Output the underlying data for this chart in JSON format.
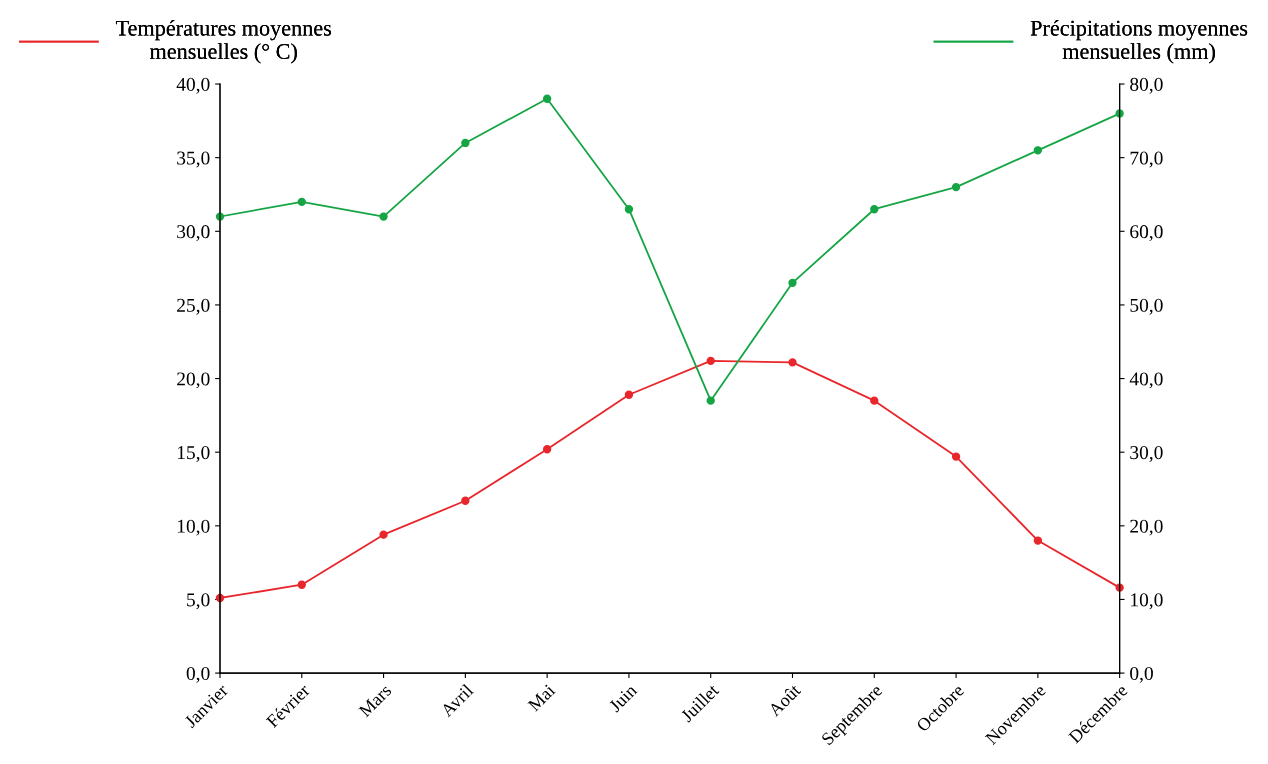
{
  "chart_data": {
    "type": "line",
    "categories": [
      "Janvier",
      "Février",
      "Mars",
      "Avril",
      "Mai",
      "Juin",
      "Juillet",
      "Août",
      "Septembre",
      "Octobre",
      "Novembre",
      "Décembre"
    ],
    "series": [
      {
        "name": "Températures moyennes\nmensuelles (° C)",
        "color": "#e8262b",
        "values": [
          5.1,
          6.0,
          9.4,
          11.7,
          15.2,
          18.9,
          21.2,
          21.1,
          18.5,
          14.7,
          9.0,
          5.8
        ]
      },
      {
        "name": "Précipitations moyennes\nmensuelles (mm)",
        "color": "#15a544",
        "axis": "y2",
        "values": [
          62,
          64,
          62,
          72,
          78,
          63,
          37,
          53,
          63,
          66,
          71,
          76
        ]
      }
    ],
    "ylim": [
      0,
      40
    ],
    "yticks": [
      {
        "value": 0,
        "label": "0,0"
      },
      {
        "value": 5,
        "label": "5,0"
      },
      {
        "value": 10,
        "label": "10,0"
      },
      {
        "value": 15,
        "label": "15,0"
      },
      {
        "value": 20,
        "label": "20,0"
      },
      {
        "value": 25,
        "label": "25,0"
      },
      {
        "value": 30,
        "label": "30,0"
      },
      {
        "value": 35,
        "label": "35,0"
      },
      {
        "value": 40,
        "label": "40,0"
      }
    ],
    "y2lim": [
      0,
      80
    ],
    "y2ticks": [
      {
        "value": 0,
        "label": "0,0"
      },
      {
        "value": 10,
        "label": "10,0"
      },
      {
        "value": 20,
        "label": "20,0"
      },
      {
        "value": 30,
        "label": "30,0"
      },
      {
        "value": 40,
        "label": "40,0"
      },
      {
        "value": 50,
        "label": "50,0"
      },
      {
        "value": 60,
        "label": "60,0"
      },
      {
        "value": 70,
        "label": "70,0"
      },
      {
        "value": 80,
        "label": "80,0"
      }
    ],
    "grid": false,
    "legend": "top",
    "marker": "circle",
    "line_style": "solid"
  }
}
